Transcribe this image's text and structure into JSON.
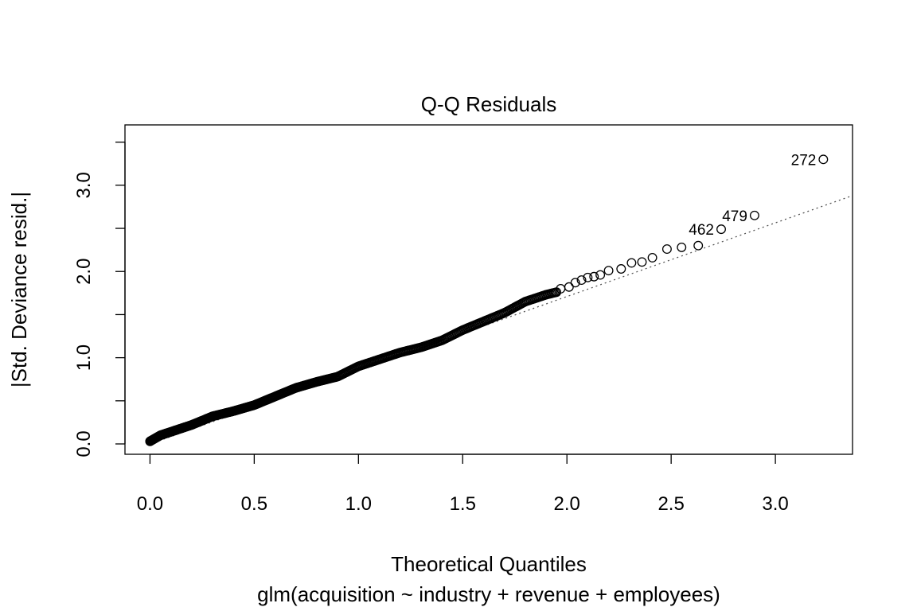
{
  "chart_data": {
    "type": "scatter",
    "title": "Q-Q Residuals",
    "xlabel": "Theoretical Quantiles",
    "subtitle": "glm(acquisition ~ industry + revenue + employees)",
    "ylabel": "|Std. Deviance resid.|",
    "xlim": [
      -0.12,
      3.37
    ],
    "ylim": [
      -0.12,
      3.7
    ],
    "x_ticks": [
      0.0,
      0.5,
      1.0,
      1.5,
      2.0,
      2.5,
      3.0
    ],
    "x_tick_labels": [
      "0.0",
      "0.5",
      "1.0",
      "1.5",
      "2.0",
      "2.5",
      "3.0"
    ],
    "y_ticks": [
      0.0,
      0.5,
      1.0,
      1.5,
      2.0,
      2.5,
      3.0,
      3.5
    ],
    "y_tick_labels": [
      "0.0",
      "",
      "1.0",
      "",
      "2.0",
      "",
      "3.0",
      ""
    ],
    "reference_line": {
      "style": "dotted",
      "points": [
        [
          0.0,
          0.0
        ],
        [
          3.37,
          2.88
        ]
      ]
    },
    "curve_knots": [
      [
        0.0,
        0.03
      ],
      [
        0.05,
        0.1
      ],
      [
        0.1,
        0.14
      ],
      [
        0.15,
        0.18
      ],
      [
        0.2,
        0.22
      ],
      [
        0.25,
        0.27
      ],
      [
        0.3,
        0.32
      ],
      [
        0.4,
        0.38
      ],
      [
        0.5,
        0.45
      ],
      [
        0.55,
        0.5
      ],
      [
        0.6,
        0.55
      ],
      [
        0.7,
        0.65
      ],
      [
        0.8,
        0.72
      ],
      [
        0.9,
        0.78
      ],
      [
        1.0,
        0.9
      ],
      [
        1.1,
        0.98
      ],
      [
        1.2,
        1.06
      ],
      [
        1.3,
        1.12
      ],
      [
        1.4,
        1.2
      ],
      [
        1.5,
        1.32
      ],
      [
        1.6,
        1.42
      ],
      [
        1.7,
        1.52
      ],
      [
        1.8,
        1.65
      ],
      [
        1.9,
        1.73
      ],
      [
        1.95,
        1.76
      ]
    ],
    "tail_points": [
      [
        1.97,
        1.8
      ],
      [
        2.01,
        1.82
      ],
      [
        2.04,
        1.87
      ],
      [
        2.07,
        1.9
      ],
      [
        2.1,
        1.93
      ],
      [
        2.13,
        1.94
      ],
      [
        2.16,
        1.96
      ],
      [
        2.2,
        2.01
      ],
      [
        2.26,
        2.03
      ],
      [
        2.31,
        2.1
      ],
      [
        2.36,
        2.11
      ],
      [
        2.41,
        2.16
      ],
      [
        2.48,
        2.26
      ],
      [
        2.55,
        2.28
      ],
      [
        2.63,
        2.3
      ],
      [
        2.74,
        2.49
      ],
      [
        2.9,
        2.65
      ],
      [
        3.23,
        3.3
      ]
    ],
    "labeled_points": [
      {
        "label": "462",
        "x": 2.74,
        "y": 2.49
      },
      {
        "label": "479",
        "x": 2.9,
        "y": 2.65
      },
      {
        "label": "272",
        "x": 3.23,
        "y": 3.3
      }
    ]
  }
}
